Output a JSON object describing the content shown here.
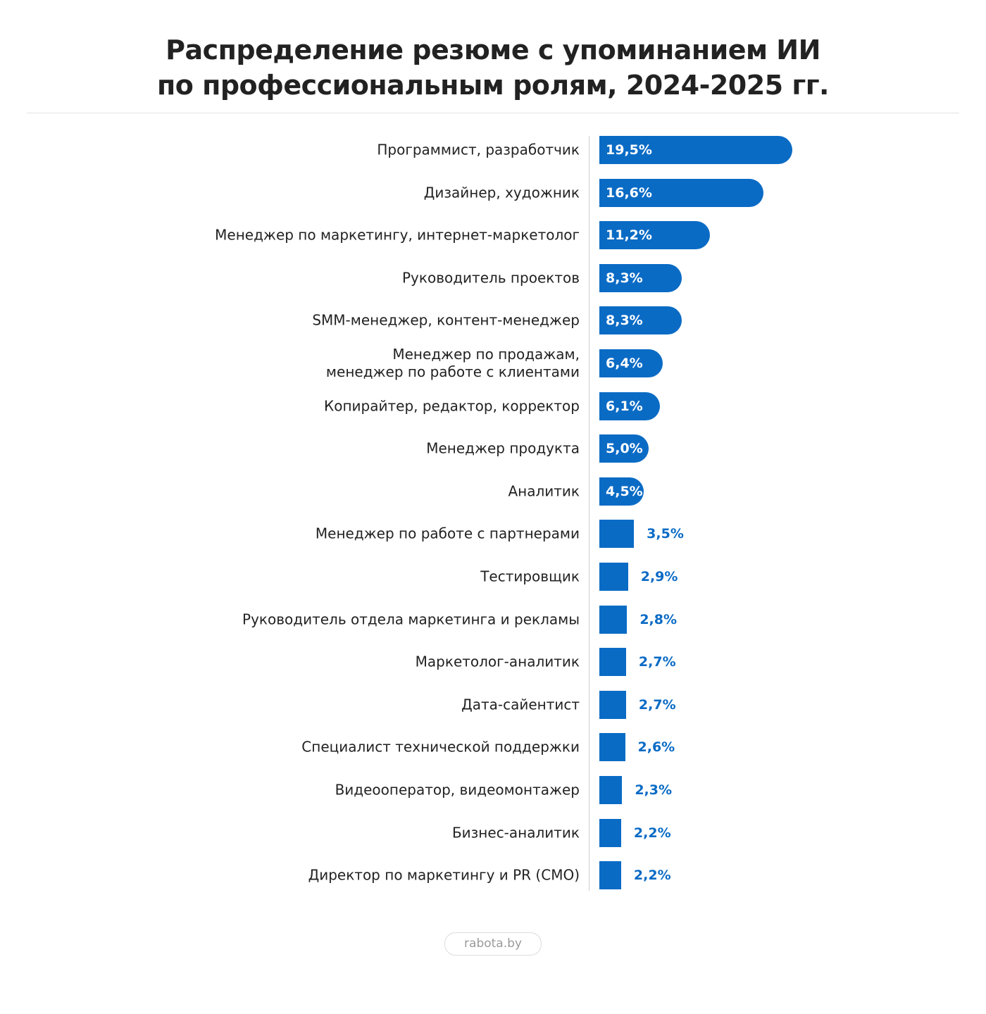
{
  "chart_data": {
    "type": "bar",
    "orientation": "horizontal",
    "title": "Распределение резюме с упоминанием ИИ\nпо профессиональным ролям, 2024-2025 гг.",
    "categories": [
      "Программист, разработчик",
      "Дизайнер, художник",
      "Менеджер по маркетингу, интернет-маркетолог",
      "Руководитель проектов",
      "SMM-менеджер, контент-менеджер",
      "Менеджер по продажам,\nменеджер по работе с клиентами",
      "Копирайтер, редактор, корректор",
      "Менеджер продукта",
      "Аналитик",
      "Менеджер по работе с партнерами",
      "Тестировщик",
      "Руководитель отдела маркетинга и рекламы",
      "Маркетолог-аналитик",
      "Дата-сайентист",
      "Специалист технической поддержки",
      "Видеооператор, видеомонтажер",
      "Бизнес-аналитик",
      "Директор по маркетингу и PR (CMO)"
    ],
    "values": [
      19.5,
      16.6,
      11.2,
      8.3,
      8.3,
      6.4,
      6.1,
      5.0,
      4.5,
      3.5,
      2.9,
      2.8,
      2.7,
      2.7,
      2.6,
      2.3,
      2.2,
      2.2
    ],
    "value_labels": [
      "19,5%",
      "16,6%",
      "11,2%",
      "8,3%",
      "8,3%",
      "6,4%",
      "6,1%",
      "5,0%",
      "4,5%",
      "3,5%",
      "2,9%",
      "2,8%",
      "2,7%",
      "2,7%",
      "2,6%",
      "2,3%",
      "2,2%",
      "2,2%"
    ],
    "color": "#0a6bc5",
    "source": "rabota.by"
  }
}
